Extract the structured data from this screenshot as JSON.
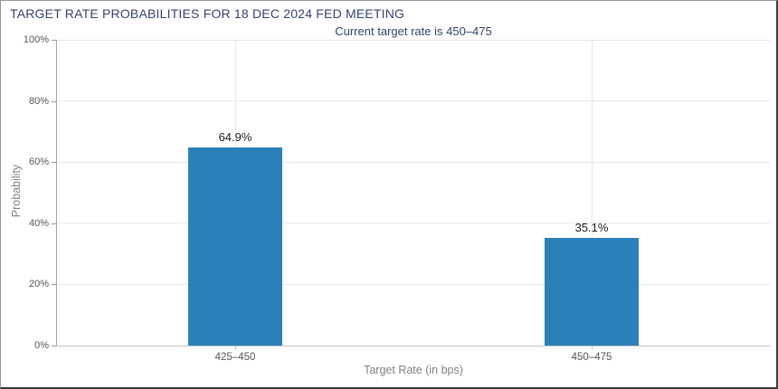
{
  "chart_data": {
    "type": "bar",
    "title": "TARGET RATE PROBABILITIES FOR 18 DEC 2024 FED MEETING",
    "subtitle": "Current target rate is 450–475",
    "categories": [
      "425–450",
      "450–475"
    ],
    "values": [
      64.9,
      35.1
    ],
    "value_labels": [
      "64.9%",
      "35.1%"
    ],
    "xlabel": "Target Rate (in bps)",
    "ylabel": "Probability",
    "ylim": [
      0,
      100
    ],
    "yticks": [
      0,
      20,
      40,
      60,
      80,
      100
    ],
    "ytick_labels": [
      "0%",
      "20%",
      "40%",
      "60%",
      "80%",
      "100%"
    ],
    "grid": true,
    "legend": "none",
    "colors": {
      "bar": "#2a80b9",
      "title": "#344270",
      "subtitle": "#344270",
      "gridline": "#e7e7e7",
      "axis_line_y": "#a6a6a6",
      "axis_line_x": "#c4c4c4",
      "tick_mark_y": "#9a9a9a",
      "tick_mark_x": "#c4c4c4",
      "tick_label": "#555555",
      "axis_title": "#808080",
      "value_label": "#1a1a1a"
    }
  }
}
